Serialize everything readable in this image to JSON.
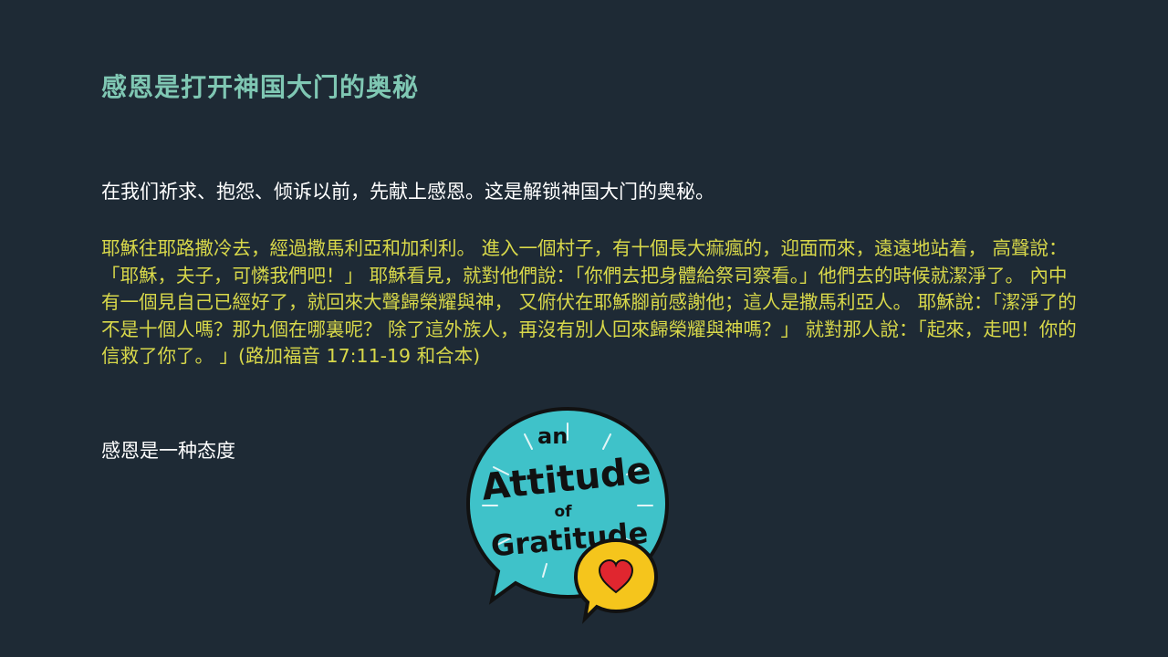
{
  "slide": {
    "title": "感恩是打开神国大门的奥秘",
    "intro": "在我们祈求、抱怨、倾诉以前，先献上感恩。这是解锁神国大门的奥秘。",
    "scripture": "耶穌往耶路撒冷去，經過撒馬利亞和加利利。 進入一個村子，有十個長大痲瘋的，迎面而來，遠遠地站着， 高聲說：「耶穌，夫子，可憐我們吧！」 耶穌看見，就對他們說：「你們去把身體給祭司察看。」他們去的時候就潔淨了。 內中有一個見自己已經好了，就回來大聲歸榮耀與神， 又俯伏在耶穌腳前感謝他；這人是撒馬利亞人。 耶穌說：「潔淨了的不是十個人嗎？那九個在哪裏呢？ 除了這外族人，再沒有別人回來歸榮耀與神嗎？」 就對那人說：「起來，走吧！你的信救了你了。 」(路加福音 17:11-19 和合本)",
    "attitude": "感恩是一种态度"
  },
  "badge": {
    "word_an": "an",
    "word_attitude": "Attitude",
    "word_of": "of",
    "word_gratitude": "Gratitude",
    "icon": "heart-speech-bubble-icon",
    "colors": {
      "teal": "#3fc2c9",
      "yellow": "#f5c51c",
      "heart": "#e0262f",
      "ink": "#111111"
    }
  }
}
